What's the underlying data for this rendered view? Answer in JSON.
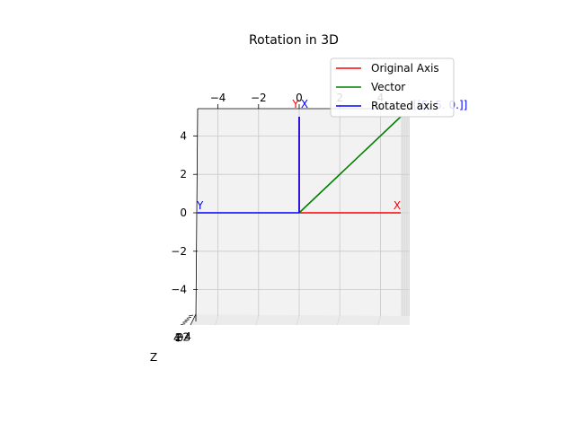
{
  "chart_data": {
    "type": "line",
    "title": "Rotation in 3D",
    "projection": "3d",
    "xlim": [
      -5,
      5
    ],
    "ylim": [
      -5,
      5
    ],
    "zlim": [
      -5,
      5
    ],
    "x_ticks": [
      "−4",
      "−2",
      "0",
      "2",
      "4"
    ],
    "y_ticks": [
      "4",
      "2",
      "0",
      "−2",
      "−4"
    ],
    "z_ticks": [
      "−4",
      "−2",
      "0",
      "2",
      "4"
    ],
    "zlabel": "Z",
    "grid": true,
    "legend_position": "top-right",
    "legend": [
      "Original Axis",
      "Vector",
      "Rotated axis"
    ],
    "series": [
      {
        "name": "Original Axis",
        "color": "#ff0000",
        "lines": [
          {
            "from": [
              0,
              0
            ],
            "to": [
              5,
              0
            ]
          },
          {
            "from": [
              0,
              0
            ],
            "to": [
              0,
              5
            ]
          }
        ],
        "labels": [
          {
            "text": "X",
            "at": [
              5,
              0
            ]
          },
          {
            "text": "Y",
            "at": [
              0,
              5
            ]
          }
        ]
      },
      {
        "name": "Vector",
        "color": "#008000",
        "lines": [
          {
            "from": [
              0,
              0
            ],
            "to": [
              5,
              5
            ]
          }
        ],
        "labels": []
      },
      {
        "name": "Rotated axis",
        "color": "#0000ff",
        "lines": [
          {
            "from": [
              0,
              0
            ],
            "to": [
              -5,
              0
            ]
          },
          {
            "from": [
              0,
              0
            ],
            "to": [
              0,
              5
            ]
          }
        ],
        "labels": [
          {
            "text": "Y",
            "at": [
              -5,
              0
            ]
          },
          {
            "text": "X",
            "at": [
              0,
              5
            ]
          }
        ]
      }
    ],
    "annotations": [
      {
        "text": "[[5. 5. 0.]]",
        "color": "#0000ff"
      }
    ]
  }
}
